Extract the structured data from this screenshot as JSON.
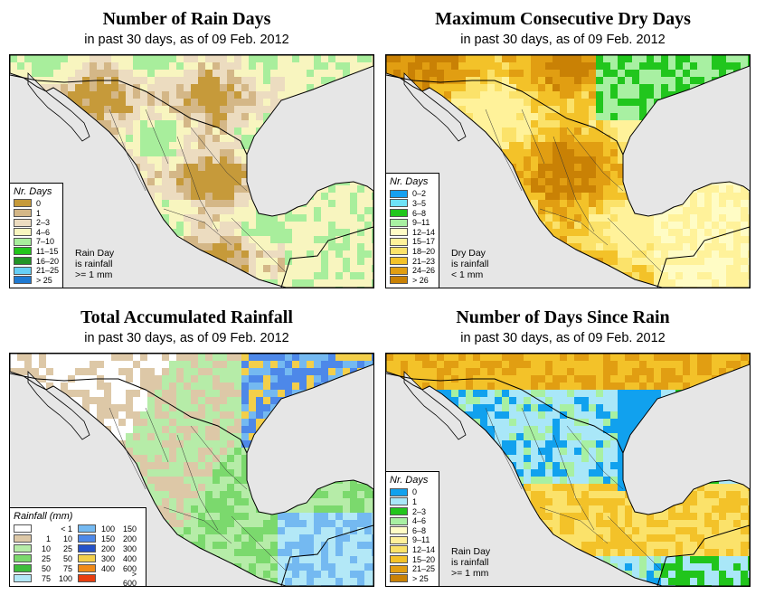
{
  "panels": [
    {
      "title": "Number of Rain Days",
      "subtitle": "in past 30 days, as of  09 Feb. 2012",
      "legend_title": "Nr. Days",
      "legend": [
        {
          "label": "0",
          "color": "#c69a3a"
        },
        {
          "label": "1",
          "color": "#d4b787"
        },
        {
          "label": "2–3",
          "color": "#ecdcc0"
        },
        {
          "label": "4–6",
          "color": "#f8f5bf"
        },
        {
          "label": "7–10",
          "color": "#a8ee9c"
        },
        {
          "label": "11–15",
          "color": "#22c51b"
        },
        {
          "label": "16–20",
          "color": "#229427"
        },
        {
          "label": "21–25",
          "color": "#66cff6"
        },
        {
          "label": "> 25",
          "color": "#1f7ad2"
        }
      ],
      "note": [
        "Rain Day",
        "is rainfall",
        ">= 1 mm"
      ]
    },
    {
      "title": "Maximum Consecutive Dry Days",
      "subtitle": "in past 30 days, as of  09 Feb. 2012",
      "legend_title": "Nr. Days",
      "legend": [
        {
          "label": "0–2",
          "color": "#16a0ef"
        },
        {
          "label": "3–5",
          "color": "#6ee3f7"
        },
        {
          "label": "6–8",
          "color": "#21c61d"
        },
        {
          "label": "9–11",
          "color": "#a8f0a2"
        },
        {
          "label": "12–14",
          "color": "#fffcc5"
        },
        {
          "label": "15–17",
          "color": "#fff29a"
        },
        {
          "label": "18–20",
          "color": "#fbe26a"
        },
        {
          "label": "21–23",
          "color": "#f3c229"
        },
        {
          "label": "24–26",
          "color": "#e19e12"
        },
        {
          "label": "> 26",
          "color": "#c98105"
        }
      ],
      "note": [
        "Dry Day",
        "is rainfall",
        "< 1 mm"
      ]
    },
    {
      "title": "Total Accumulated Rainfall",
      "subtitle": "in past 30 days, as of  09 Feb. 2012",
      "legend_title": "Rainfall (mm)",
      "legend": [
        {
          "lo": "",
          "hi": "< 1",
          "color": "#ffffff"
        },
        {
          "lo": "1",
          "hi": "10",
          "color": "#ddc8a7"
        },
        {
          "lo": "10",
          "hi": "25",
          "color": "#b6eca8"
        },
        {
          "lo": "25",
          "hi": "50",
          "color": "#7bd96d"
        },
        {
          "lo": "50",
          "hi": "75",
          "color": "#3ebd3c"
        },
        {
          "lo": "75",
          "hi": "100",
          "color": "#b3e8f7"
        },
        {
          "lo": "100",
          "hi": "150",
          "color": "#74b9f1"
        },
        {
          "lo": "150",
          "hi": "200",
          "color": "#4d88e9"
        },
        {
          "lo": "200",
          "hi": "300",
          "color": "#2452c9"
        },
        {
          "lo": "300",
          "hi": "400",
          "color": "#f3cf4a"
        },
        {
          "lo": "400",
          "hi": "600",
          "color": "#f08a18"
        },
        {
          "lo": "",
          "hi": "> 600",
          "color": "#e83e0f"
        }
      ]
    },
    {
      "title": "Number of Days Since Rain",
      "subtitle": "in past 30 days, as of  09 Feb. 2012",
      "legend_title": "Nr. Days",
      "legend": [
        {
          "label": "0",
          "color": "#11a1ee"
        },
        {
          "label": "1",
          "color": "#a9e7f8"
        },
        {
          "label": "2–3",
          "color": "#21c51c"
        },
        {
          "label": "4–6",
          "color": "#a8f0a2"
        },
        {
          "label": "6–8",
          "color": "#fffcc5"
        },
        {
          "label": "9–11",
          "color": "#fff09a"
        },
        {
          "label": "12–14",
          "color": "#fbe26a"
        },
        {
          "label": "15–20",
          "color": "#f3c229"
        },
        {
          "label": "21–25",
          "color": "#e19e12"
        },
        {
          "label": "> 25",
          "color": "#c98105"
        }
      ],
      "note": [
        "Rain Day",
        "is rainfall",
        ">= 1 mm"
      ]
    }
  ]
}
